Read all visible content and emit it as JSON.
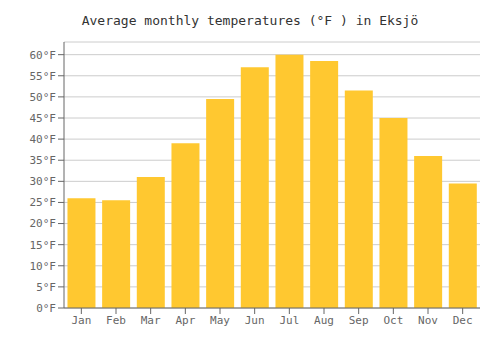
{
  "chart_data": {
    "type": "bar",
    "title": "Average monthly temperatures (°F ) in Eksjö",
    "categories": [
      "Jan",
      "Feb",
      "Mar",
      "Apr",
      "May",
      "Jun",
      "Jul",
      "Aug",
      "Sep",
      "Oct",
      "Nov",
      "Dec"
    ],
    "values": [
      26,
      25.5,
      31,
      39,
      49.5,
      57,
      60,
      58.5,
      51.5,
      45,
      36,
      29.5
    ],
    "color": "#FFC830",
    "ylim": [
      0,
      63
    ],
    "yticks": [
      {
        "value": 0,
        "label": "0°F"
      },
      {
        "value": 5,
        "label": "5°F"
      },
      {
        "value": 10,
        "label": "10°F"
      },
      {
        "value": 15,
        "label": "15°F"
      },
      {
        "value": 20,
        "label": "20°F"
      },
      {
        "value": 25,
        "label": "25°F"
      },
      {
        "value": 30,
        "label": "30°F"
      },
      {
        "value": 35,
        "label": "35°F"
      },
      {
        "value": 40,
        "label": "40°F"
      },
      {
        "value": 45,
        "label": "45°F"
      },
      {
        "value": 50,
        "label": "50°F"
      },
      {
        "value": 55,
        "label": "55°F"
      },
      {
        "value": 60,
        "label": "60°F"
      }
    ],
    "grid": true
  }
}
